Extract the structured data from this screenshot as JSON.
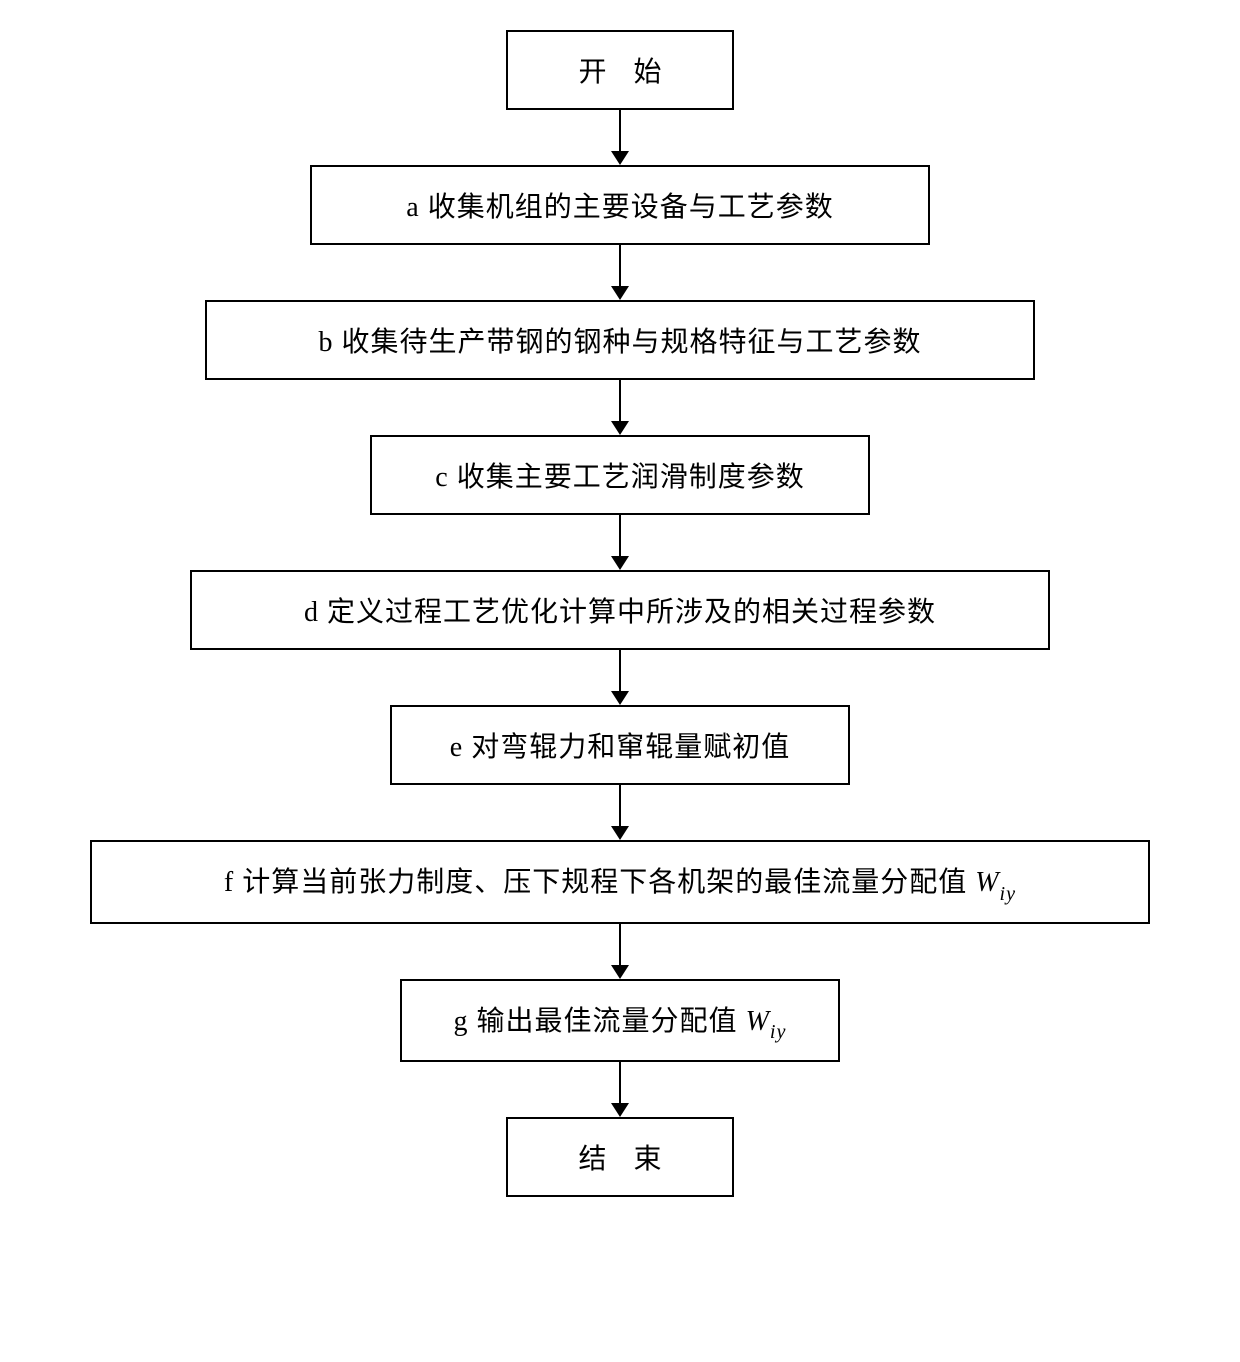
{
  "flowchart": {
    "type": "flowchart",
    "direction": "top-to-bottom",
    "background_color": "#ffffff",
    "border_color": "#000000",
    "border_width": 2,
    "text_color": "#000000",
    "font_size": 28,
    "arrow_length": 55,
    "arrow_head_size": 14,
    "nodes": {
      "start": {
        "label": "开 始",
        "type": "terminal",
        "width_class": "w-term"
      },
      "a": {
        "label": "a  收集机组的主要设备与工艺参数",
        "type": "process",
        "width_class": "w-a"
      },
      "b": {
        "label": "b  收集待生产带钢的钢种与规格特征与工艺参数",
        "type": "process",
        "width_class": "w-b"
      },
      "c": {
        "label": "c  收集主要工艺润滑制度参数",
        "type": "process",
        "width_class": "w-c"
      },
      "d": {
        "label": "d  定义过程工艺优化计算中所涉及的相关过程参数",
        "type": "process",
        "width_class": "w-d"
      },
      "e": {
        "label": "e  对弯辊力和窜辊量赋初值",
        "type": "process",
        "width_class": "w-e"
      },
      "f": {
        "label_prefix": "f  计算当前张力制度、压下规程下各机架的最佳流量分配值 ",
        "var": "W",
        "subscript": "iy",
        "type": "process",
        "width_class": "w-f"
      },
      "g": {
        "label_prefix": "g  输出最佳流量分配值 ",
        "var": "W",
        "subscript": "iy",
        "type": "process",
        "width_class": "w-g"
      },
      "end": {
        "label": "结 束",
        "type": "terminal",
        "width_class": "w-term"
      }
    },
    "edges": [
      {
        "from": "start",
        "to": "a"
      },
      {
        "from": "a",
        "to": "b"
      },
      {
        "from": "b",
        "to": "c"
      },
      {
        "from": "c",
        "to": "d"
      },
      {
        "from": "d",
        "to": "e"
      },
      {
        "from": "e",
        "to": "f"
      },
      {
        "from": "f",
        "to": "g"
      },
      {
        "from": "g",
        "to": "end"
      }
    ]
  }
}
